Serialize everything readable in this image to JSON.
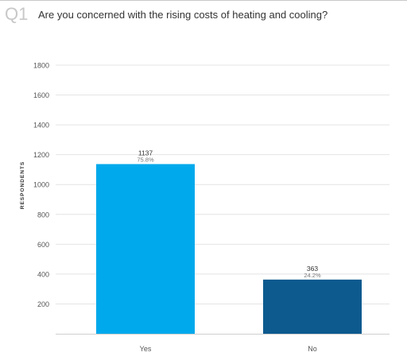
{
  "question": {
    "number": "Q1",
    "text": "Are you concerned with the rising costs of heating and cooling?"
  },
  "chart_data": {
    "type": "bar",
    "categories": [
      "Yes",
      "No"
    ],
    "values": [
      1137,
      363
    ],
    "percent_labels": [
      "75.8%",
      "24.2%"
    ],
    "ylabel": "RESPONDENTS",
    "ylim": [
      0,
      1800
    ],
    "yticks": [
      200,
      400,
      600,
      800,
      1000,
      1200,
      1400,
      1600,
      1800
    ],
    "grid": true,
    "colors": [
      "#00a9ec",
      "#0d5a8f"
    ]
  }
}
